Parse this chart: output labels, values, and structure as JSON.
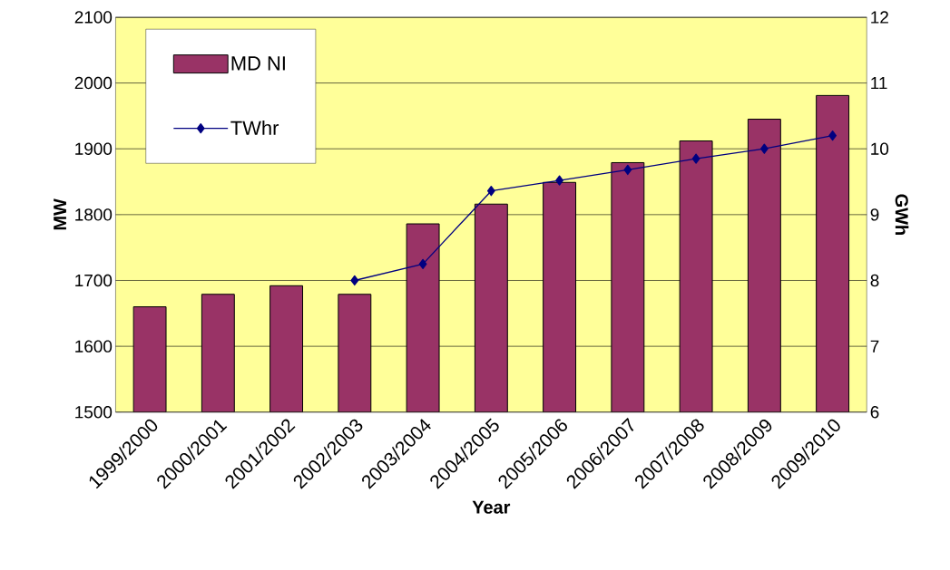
{
  "chart_data": {
    "type": "bar",
    "xlabel": "Year",
    "ylabel": "MW",
    "y2label": "GWh",
    "categories": [
      "1999/2000",
      "2000/2001",
      "2001/2002",
      "2002/2003",
      "2003/2004",
      "2004/2005",
      "2005/2006",
      "2006/2007",
      "2007/2008",
      "2008/2009",
      "2009/2010"
    ],
    "series": [
      {
        "name": "MD NI",
        "color": "#993366",
        "values": [
          1660,
          1679,
          1692,
          1679,
          1786,
          1816,
          1849,
          1879,
          1912,
          1945,
          1981
        ]
      },
      {
        "name": "TWhr",
        "type": "line",
        "axis": "y2",
        "color": "#000080",
        "marker": "diamond",
        "values": [
          null,
          null,
          null,
          8.0,
          8.25,
          9.36,
          9.52,
          9.68,
          9.85,
          10.0,
          10.2
        ]
      }
    ],
    "ylim": [
      1500,
      2100
    ],
    "yticks": [
      1500,
      1600,
      1700,
      1800,
      1900,
      2000,
      2100
    ],
    "y2lim": [
      6,
      12
    ],
    "y2ticks": [
      6,
      7,
      8,
      9,
      10,
      11,
      12
    ],
    "grid": "y",
    "legend": "top left"
  }
}
